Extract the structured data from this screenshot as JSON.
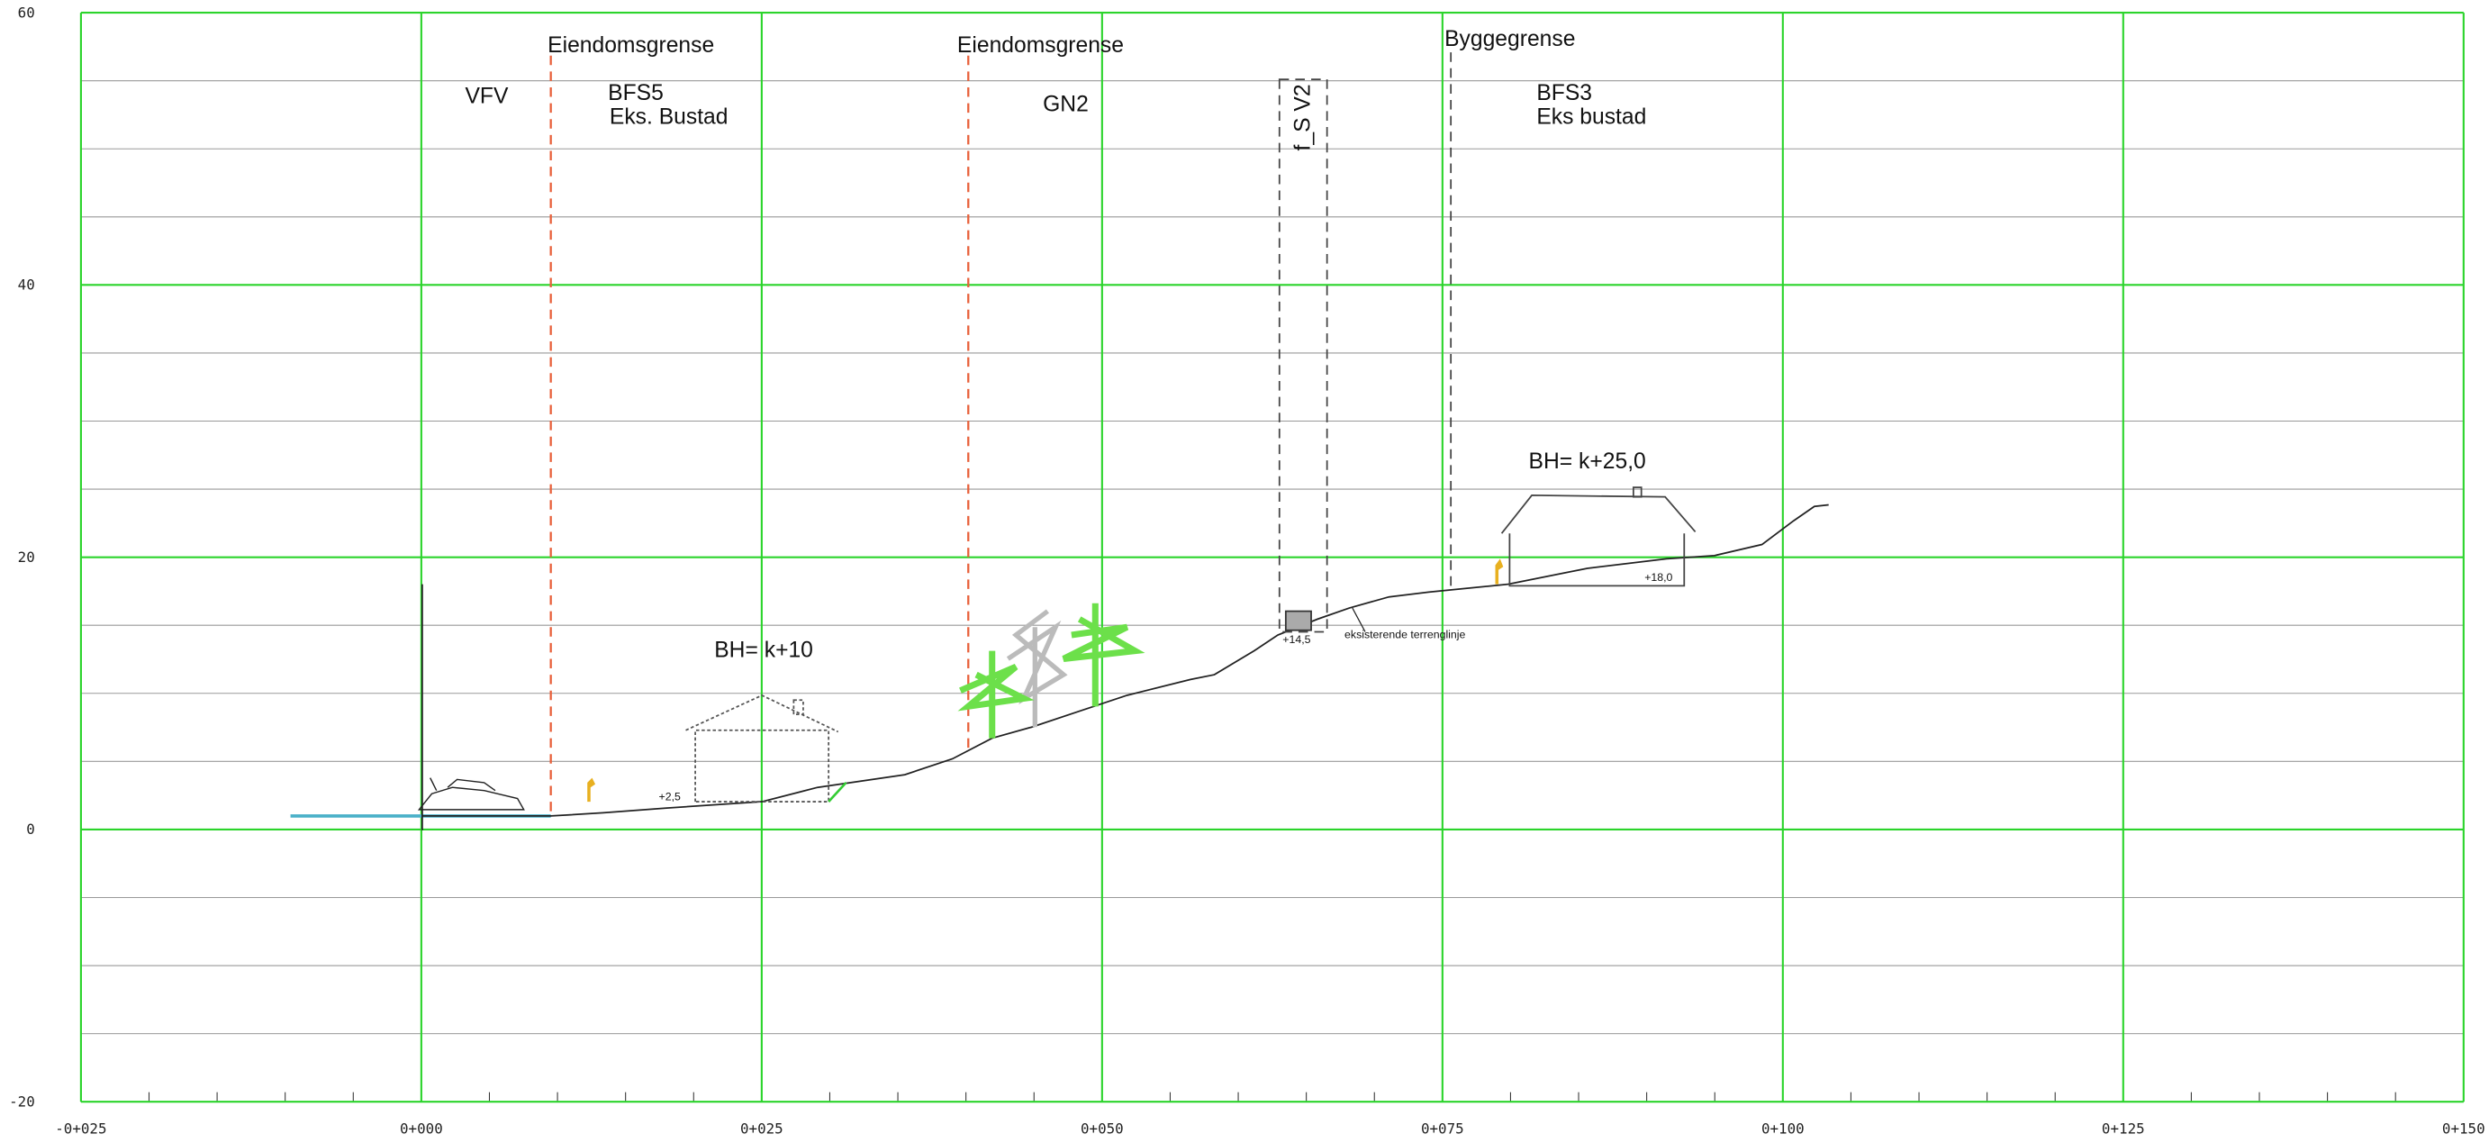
{
  "axes": {
    "xlim": [
      -25,
      150
    ],
    "ylim": [
      -20,
      60
    ],
    "xticks": [
      {
        "value": -25,
        "label": "-0+025"
      },
      {
        "value": 0,
        "label": "0+000"
      },
      {
        "value": 25,
        "label": "0+025"
      },
      {
        "value": 50,
        "label": "0+050"
      },
      {
        "value": 75,
        "label": "0+075"
      },
      {
        "value": 100,
        "label": "0+100"
      },
      {
        "value": 125,
        "label": "0+125"
      },
      {
        "value": 150,
        "label": "0+150"
      }
    ],
    "yticks": [
      60,
      40,
      20,
      0,
      -20
    ]
  },
  "labels": {
    "boundary1": "Eiendomsgrense",
    "boundary2": "Eiendomsgrense",
    "building_limit": "Byggegrense",
    "vfv": "VFV",
    "bfs5": "BFS5",
    "bfs5_sub": "Eks. Bustad",
    "gn2": "GN2",
    "fsv2": "f_S V2",
    "bfs3": "BFS3",
    "bfs3_sub": "Eks bustad",
    "bh_left": "BH= k+10",
    "bh_right": "BH= k+25,0",
    "level_left": "+2,5",
    "level_mid": "+14,5",
    "level_right": "+18,0",
    "terrain": "eksisterende terrenglinje"
  }
}
